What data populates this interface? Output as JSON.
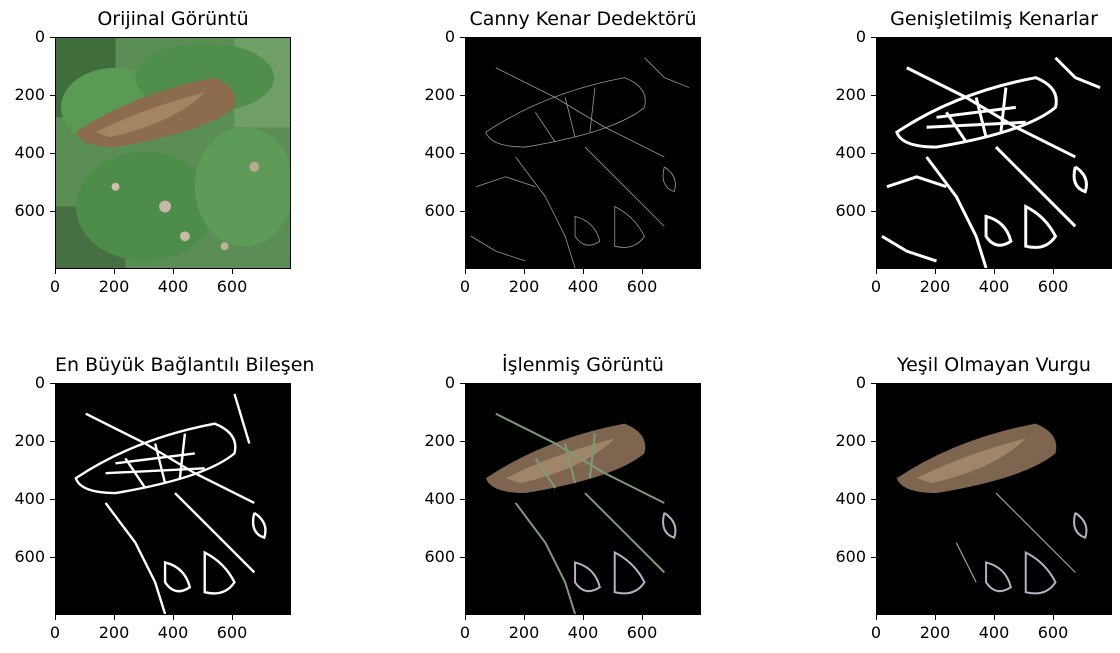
{
  "panels": [
    {
      "title": "Orijinal Görüntü",
      "kind": "original"
    },
    {
      "title": "Canny Kenar Dedektörü",
      "kind": "canny"
    },
    {
      "title": "Genişletilmiş Kenarlar",
      "kind": "dilated"
    },
    {
      "title": "En Büyük Bağlantılı Bileşen",
      "kind": "component"
    },
    {
      "title": "İşlenmiş Görüntü",
      "kind": "processed"
    },
    {
      "title": "Yeşil Olmayan Vurgu",
      "kind": "nongreen"
    }
  ],
  "axis": {
    "x_ticks": [
      "0",
      "200",
      "400",
      "600"
    ],
    "y_ticks": [
      "0",
      "200",
      "400",
      "600"
    ],
    "x_values": [
      0,
      200,
      400,
      600
    ],
    "y_values": [
      0,
      200,
      400,
      600
    ],
    "extent": 800
  },
  "colors": {
    "leaf_green": "#4f8a4a",
    "dead_leaf": "#8a6a4a",
    "background": "#000000",
    "edge_white": "#ffffff"
  }
}
